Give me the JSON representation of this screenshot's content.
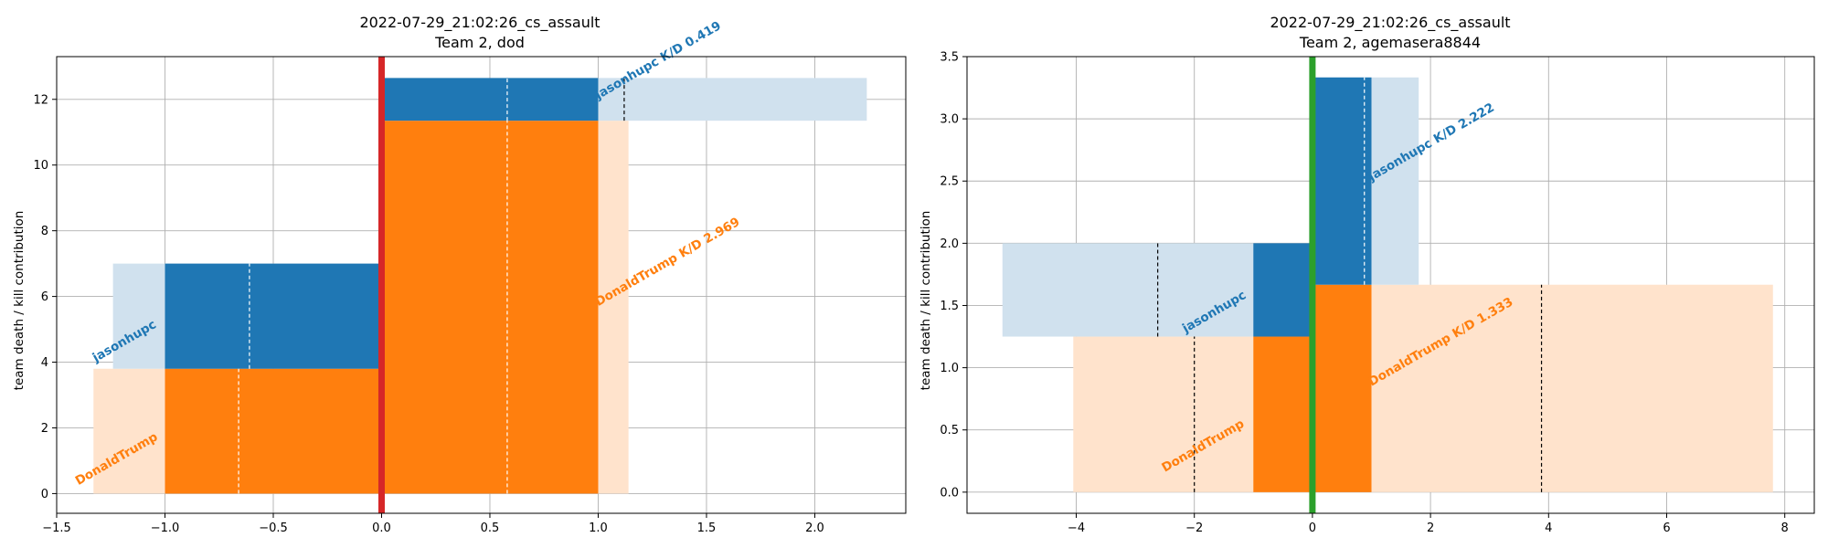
{
  "colors": {
    "blue": "#1f77b4",
    "orange": "#ff7f0e",
    "blue_light": "#d0e1ee",
    "orange_light": "#ffe3cc",
    "red_line": "#d62728",
    "green_line": "#2ca02c",
    "grid": "#b0b0b0"
  },
  "chart_data": [
    {
      "type": "bar",
      "title": "2022-07-29_21:02:26_cs_assault",
      "subtitle": "Team 2, dod",
      "ylabel": "team death / kill contribution",
      "xlabel": "",
      "xlim": [
        -1.5,
        2.42
      ],
      "ylim": [
        -0.6,
        13.3
      ],
      "xticks": [
        -1.5,
        -1.0,
        -0.5,
        0.0,
        0.5,
        1.0,
        1.5,
        2.0
      ],
      "xtick_labels": [
        "−1.5",
        "−1.0",
        "−0.5",
        "0.0",
        "0.5",
        "1.0",
        "1.5",
        "2.0"
      ],
      "yticks": [
        0,
        2,
        4,
        6,
        8,
        10,
        12
      ],
      "ytick_labels": [
        "0",
        "2",
        "4",
        "6",
        "8",
        "10",
        "12"
      ],
      "grid": true,
      "center_line": {
        "x": 0,
        "color": "red"
      },
      "bars": [
        {
          "x0": -1.33,
          "x1": 0,
          "y0": 0,
          "y1": 3.8,
          "fill": "orange_light"
        },
        {
          "x0": -1.24,
          "x1": 0,
          "y0": 3.8,
          "y1": 7.0,
          "fill": "blue_light"
        },
        {
          "x0": 1.0,
          "x1": 1.14,
          "y0": 0,
          "y1": 11.35,
          "fill": "orange_light"
        },
        {
          "x0": 1.0,
          "x1": 2.24,
          "y0": 11.35,
          "y1": 12.65,
          "fill": "blue_light"
        },
        {
          "x0": -1.0,
          "x1": 0,
          "y0": 0,
          "y1": 3.8,
          "fill": "orange"
        },
        {
          "x0": -1.0,
          "x1": 0,
          "y0": 3.8,
          "y1": 7.0,
          "fill": "blue"
        },
        {
          "x0": 0,
          "x1": 1.0,
          "y0": 0,
          "y1": 11.35,
          "fill": "orange"
        },
        {
          "x0": 0,
          "x1": 1.0,
          "y0": 11.35,
          "y1": 12.65,
          "fill": "blue"
        }
      ],
      "markers": [
        {
          "x": -0.66,
          "y0": 0,
          "y1": 3.8,
          "color": "white"
        },
        {
          "x": -0.61,
          "y0": 3.8,
          "y1": 7.0,
          "color": "white"
        },
        {
          "x": 0.58,
          "y0": 0,
          "y1": 11.35,
          "color": "white"
        },
        {
          "x": 0.58,
          "y0": 11.35,
          "y1": 12.65,
          "color": "white"
        },
        {
          "x": 1.12,
          "y0": 11.35,
          "y1": 12.65,
          "color": "black"
        }
      ],
      "labels": [
        {
          "text": "DonaldTrump",
          "x": -1.4,
          "y": 0.25,
          "color": "orange"
        },
        {
          "text": "jasonhupc",
          "x": -1.32,
          "y": 4.0,
          "color": "blue"
        },
        {
          "text": "DonaldTrump K/D 2.969",
          "x": 1.0,
          "y": 5.7,
          "color": "orange"
        },
        {
          "text": "jasonhupc K/D 0.419",
          "x": 1.0,
          "y": 12.0,
          "color": "blue"
        }
      ]
    },
    {
      "type": "bar",
      "title": "2022-07-29_21:02:26_cs_assault",
      "subtitle": "Team 2, agemasera8844",
      "ylabel": "team death / kill contribution",
      "xlabel": "",
      "xlim": [
        -5.85,
        8.5
      ],
      "ylim": [
        -0.17,
        3.5
      ],
      "xticks": [
        -4,
        -2,
        0,
        2,
        4,
        6,
        8
      ],
      "xtick_labels": [
        "−4",
        "−2",
        "0",
        "2",
        "4",
        "6",
        "8"
      ],
      "yticks": [
        0.0,
        0.5,
        1.0,
        1.5,
        2.0,
        2.5,
        3.0,
        3.5
      ],
      "ytick_labels": [
        "0.0",
        "0.5",
        "1.0",
        "1.5",
        "2.0",
        "2.5",
        "3.0",
        "3.5"
      ],
      "grid": true,
      "center_line": {
        "x": 0,
        "color": "green"
      },
      "bars": [
        {
          "x0": -4.05,
          "x1": 0,
          "y0": 0,
          "y1": 1.25,
          "fill": "orange_light"
        },
        {
          "x0": -5.25,
          "x1": 0,
          "y0": 1.25,
          "y1": 2.0,
          "fill": "blue_light"
        },
        {
          "x0": 1.0,
          "x1": 7.8,
          "y0": 0,
          "y1": 1.667,
          "fill": "orange_light"
        },
        {
          "x0": 1.0,
          "x1": 1.8,
          "y0": 1.667,
          "y1": 3.333,
          "fill": "blue_light"
        },
        {
          "x0": -1.0,
          "x1": 0,
          "y0": 0,
          "y1": 1.25,
          "fill": "orange"
        },
        {
          "x0": -1.0,
          "x1": 0,
          "y0": 1.25,
          "y1": 2.0,
          "fill": "blue"
        },
        {
          "x0": 0,
          "x1": 1.0,
          "y0": 0,
          "y1": 1.667,
          "fill": "orange"
        },
        {
          "x0": 0,
          "x1": 1.0,
          "y0": 1.667,
          "y1": 3.333,
          "fill": "blue"
        }
      ],
      "markers": [
        {
          "x": -2.0,
          "y0": 0,
          "y1": 1.25,
          "color": "black"
        },
        {
          "x": -2.62,
          "y0": 1.25,
          "y1": 2.0,
          "color": "black"
        },
        {
          "x": 0.88,
          "y0": 1.667,
          "y1": 3.333,
          "color": "white"
        },
        {
          "x": 3.88,
          "y0": 0,
          "y1": 1.667,
          "color": "black"
        }
      ],
      "labels": [
        {
          "text": "DonaldTrump",
          "x": -2.5,
          "y": 0.16,
          "color": "orange"
        },
        {
          "text": "jasonhupc",
          "x": -2.15,
          "y": 1.28,
          "color": "blue"
        },
        {
          "text": "DonaldTrump K/D 1.333",
          "x": 1.0,
          "y": 0.85,
          "color": "orange"
        },
        {
          "text": "jasonhupc K/D 2.222",
          "x": 1.0,
          "y": 2.5,
          "color": "blue"
        }
      ]
    }
  ]
}
